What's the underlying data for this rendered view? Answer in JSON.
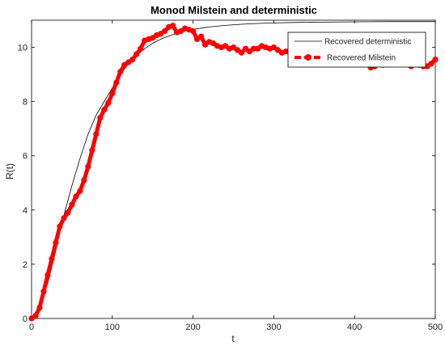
{
  "chart_data": {
    "type": "line",
    "title": "Monod Milstein and deterministic",
    "xlabel": "t",
    "ylabel": "R(t)",
    "xlim": [
      0,
      500
    ],
    "ylim": [
      0,
      11
    ],
    "xticks": [
      0,
      100,
      200,
      300,
      400,
      500
    ],
    "yticks": [
      0,
      2,
      4,
      6,
      8,
      10
    ],
    "grid": false,
    "legend_position": "top-right",
    "series": [
      {
        "name": "Recovered deterministic",
        "style": "solid-thin",
        "color": "#000000",
        "x": [
          0,
          10,
          20,
          30,
          40,
          50,
          60,
          70,
          80,
          90,
          100,
          110,
          120,
          130,
          140,
          150,
          160,
          170,
          180,
          190,
          200,
          220,
          240,
          260,
          280,
          300,
          330,
          360,
          400,
          450,
          500
        ],
        "y": [
          0,
          0.4,
          1.3,
          2.5,
          3.8,
          4.9,
          5.9,
          6.8,
          7.5,
          8.0,
          8.5,
          9.0,
          9.4,
          9.7,
          9.95,
          10.15,
          10.3,
          10.42,
          10.52,
          10.6,
          10.66,
          10.75,
          10.81,
          10.85,
          10.88,
          10.9,
          10.92,
          10.93,
          10.94,
          10.95,
          10.95
        ]
      },
      {
        "name": "Recovered Milstein",
        "style": "dashed-thick-markers",
        "color": "#ff0000",
        "x": [
          0,
          5,
          10,
          15,
          20,
          25,
          30,
          35,
          40,
          45,
          50,
          55,
          60,
          65,
          70,
          75,
          80,
          85,
          90,
          95,
          100,
          105,
          110,
          115,
          120,
          125,
          130,
          135,
          140,
          145,
          150,
          155,
          160,
          165,
          170,
          175,
          180,
          185,
          190,
          195,
          200,
          205,
          210,
          215,
          220,
          225,
          230,
          235,
          240,
          245,
          250,
          255,
          260,
          265,
          270,
          275,
          280,
          285,
          290,
          295,
          300,
          305,
          310,
          315,
          320,
          325,
          330,
          335,
          340,
          345,
          350,
          355,
          360,
          365,
          370,
          375,
          380,
          385,
          390,
          395,
          400,
          405,
          410,
          415,
          420,
          425,
          430,
          435,
          440,
          445,
          450,
          455,
          460,
          465,
          470,
          475,
          480,
          485,
          490,
          495,
          500
        ],
        "y": [
          0,
          0.1,
          0.4,
          1.0,
          1.6,
          2.2,
          2.8,
          3.4,
          3.7,
          3.9,
          4.2,
          4.5,
          4.7,
          5.1,
          5.6,
          6.2,
          6.8,
          7.4,
          7.7,
          7.95,
          8.3,
          8.7,
          9.1,
          9.35,
          9.45,
          9.55,
          9.75,
          9.95,
          10.25,
          10.3,
          10.35,
          10.45,
          10.5,
          10.6,
          10.75,
          10.8,
          10.55,
          10.6,
          10.7,
          10.65,
          10.6,
          10.3,
          10.4,
          10.1,
          10.2,
          10.15,
          10.05,
          10.0,
          10.05,
          9.95,
          10.0,
          9.9,
          9.8,
          9.95,
          9.85,
          9.95,
          9.95,
          10.05,
          10.0,
          9.95,
          10.0,
          9.9,
          9.8,
          9.85,
          9.8,
          9.8,
          9.65,
          9.75,
          9.7,
          9.65,
          9.6,
          9.6,
          9.45,
          9.6,
          9.4,
          9.55,
          9.7,
          9.6,
          9.5,
          9.55,
          9.55,
          9.6,
          9.45,
          9.5,
          9.25,
          9.3,
          9.4,
          9.35,
          9.5,
          9.5,
          9.55,
          9.45,
          9.6,
          9.5,
          9.3,
          9.45,
          9.35,
          9.3,
          9.3,
          9.4,
          9.55
        ]
      }
    ]
  }
}
